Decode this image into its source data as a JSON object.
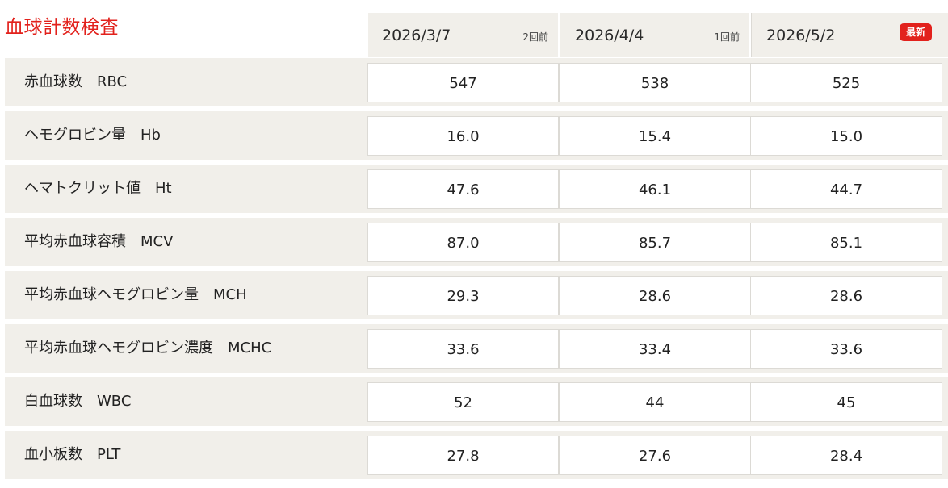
{
  "title": "血球計数検査",
  "columns": [
    {
      "date": "2026/3/7",
      "tag": "2回前"
    },
    {
      "date": "2026/4/4",
      "tag": "1回前"
    },
    {
      "date": "2026/5/2",
      "badge": "最新"
    }
  ],
  "rows": [
    {
      "label": "赤血球数　RBC",
      "values": [
        "547",
        "538",
        "525"
      ]
    },
    {
      "label": "ヘモグロビン量　Hb",
      "values": [
        "16.0",
        "15.4",
        "15.0"
      ]
    },
    {
      "label": "ヘマトクリット値　Ht",
      "values": [
        "47.6",
        "46.1",
        "44.7"
      ]
    },
    {
      "label": "平均赤血球容積　MCV",
      "values": [
        "87.0",
        "85.7",
        "85.1"
      ]
    },
    {
      "label": "平均赤血球ヘモグロビン量　MCH",
      "values": [
        "29.3",
        "28.6",
        "28.6"
      ]
    },
    {
      "label": "平均赤血球ヘモグロビン濃度　MCHC",
      "values": [
        "33.6",
        "33.4",
        "33.6"
      ]
    },
    {
      "label": "白血球数　WBC",
      "values": [
        "52",
        "44",
        "45"
      ]
    },
    {
      "label": "血小板数　PLT",
      "values": [
        "27.8",
        "27.6",
        "28.4"
      ]
    }
  ],
  "colors": {
    "accent": "#e2211c",
    "row_bg": "#f1efea",
    "cell_bg": "#ffffff"
  }
}
